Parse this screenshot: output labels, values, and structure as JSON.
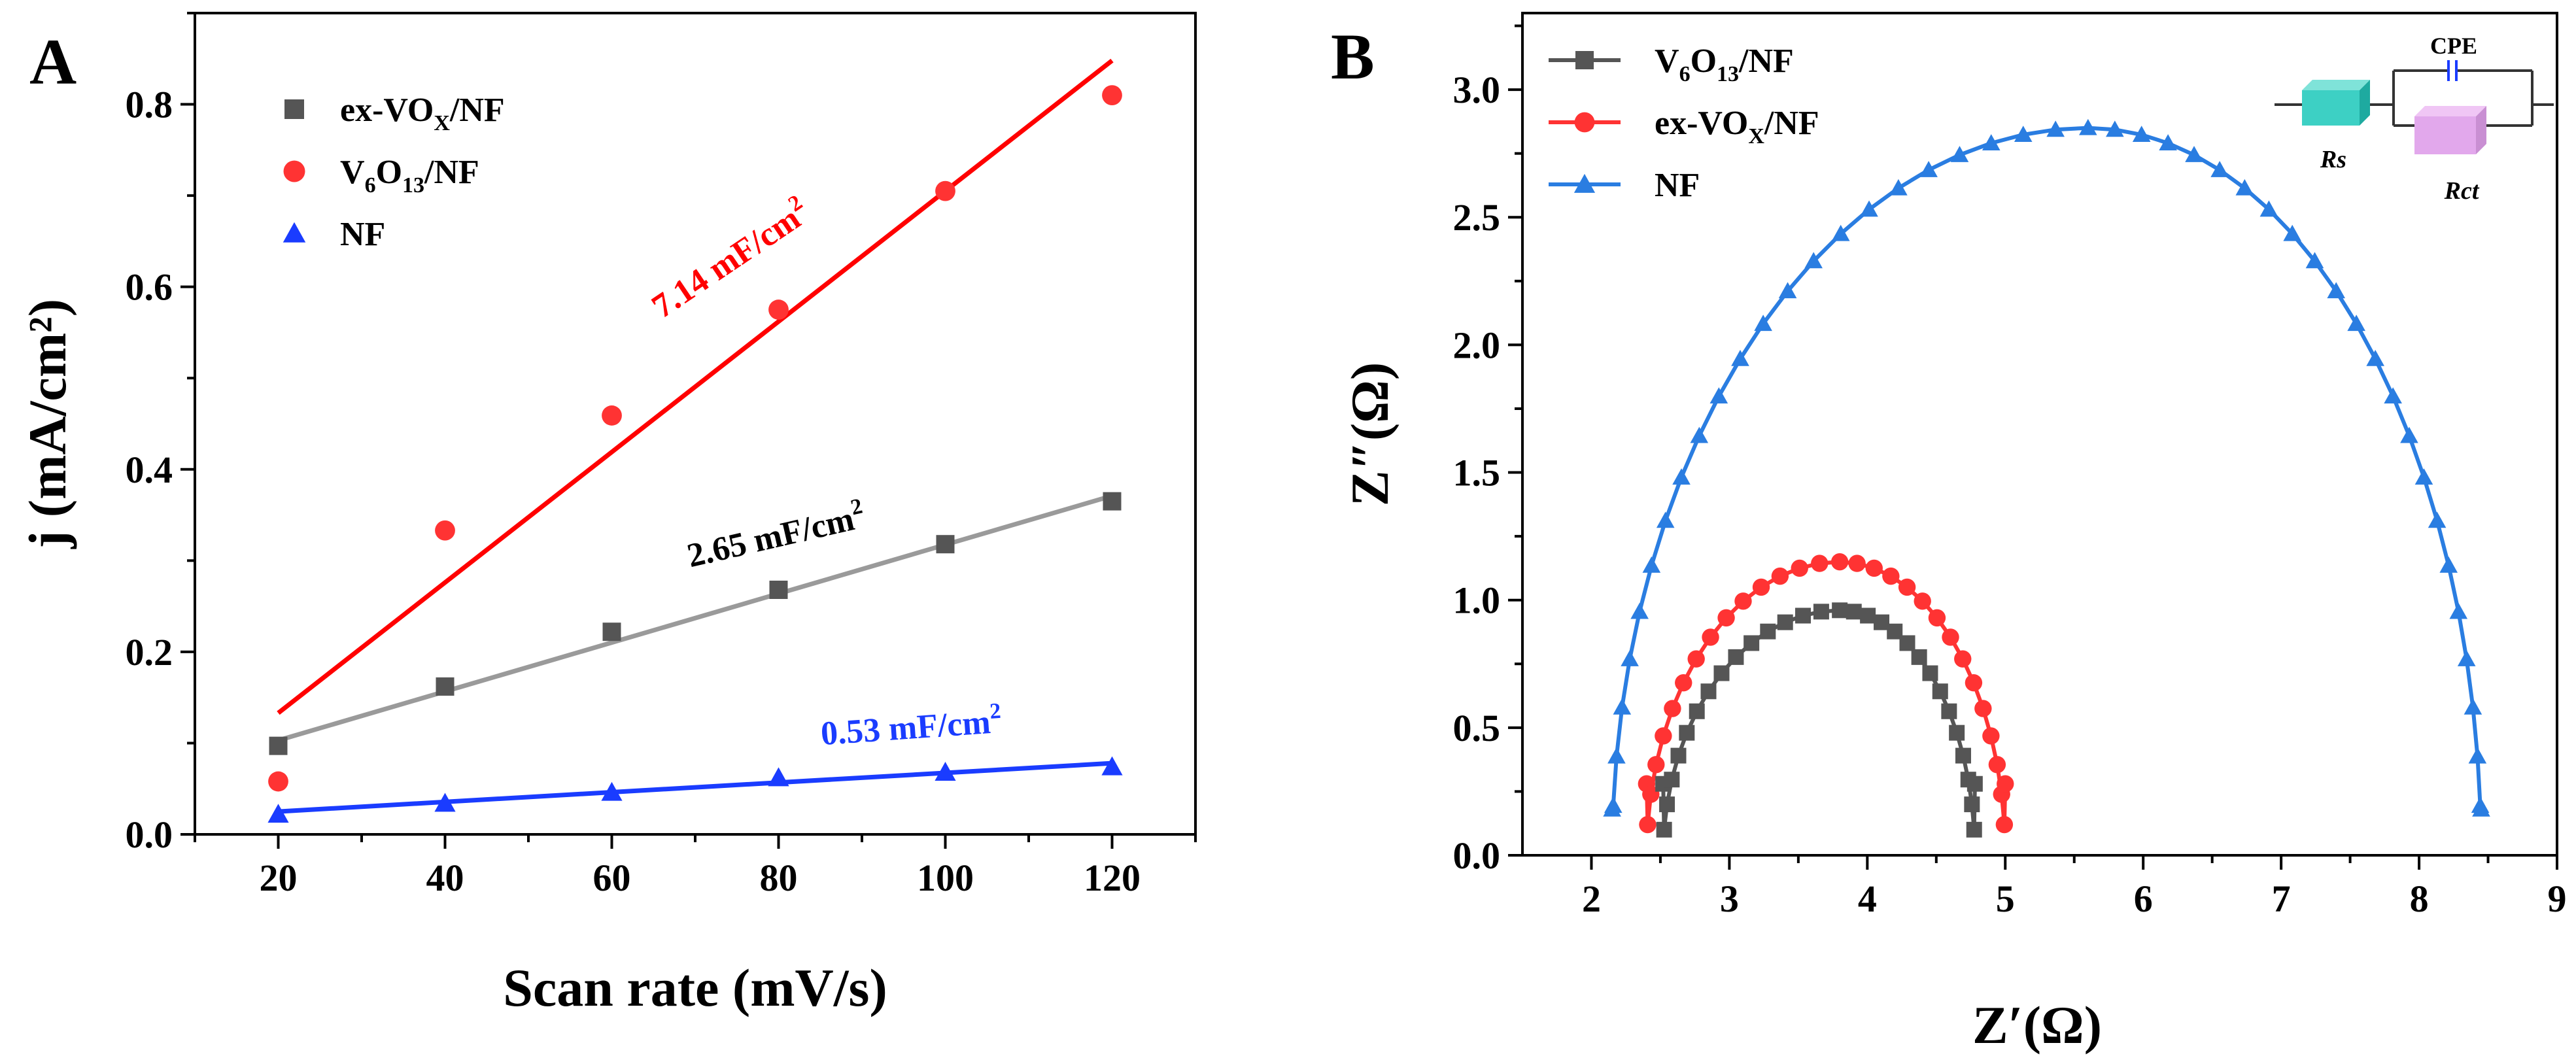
{
  "figure": {
    "panels": [
      "A",
      "B"
    ]
  },
  "chart_data": [
    {
      "panel": "A",
      "type": "scatter",
      "xlabel": "Scan rate (mV/s)",
      "ylabel": "j (mA/cm²)",
      "xlim": [
        10,
        130
      ],
      "ylim": [
        0,
        0.9
      ],
      "xticks": [
        "20",
        "40",
        "60",
        "80",
        "100",
        "120"
      ],
      "yticks": [
        "0.0",
        "0.2",
        "0.4",
        "0.6",
        "0.8"
      ],
      "legend": "top-left",
      "series": [
        {
          "name": "ex-VOX/NF",
          "marker": "square",
          "color": "#555555",
          "line_color": "#9a9a9a",
          "x": [
            20,
            40,
            60,
            80,
            100,
            120
          ],
          "y": [
            0.097,
            0.162,
            0.222,
            0.268,
            0.318,
            0.365
          ],
          "fit": [
            [
              20,
              0.103
            ],
            [
              120,
              0.371
            ]
          ]
        },
        {
          "name": "V6O13/NF",
          "marker": "circle",
          "color": "#ff3333",
          "line_color": "#ff0000",
          "x": [
            20,
            40,
            60,
            80,
            100,
            120
          ],
          "y": [
            0.058,
            0.333,
            0.459,
            0.575,
            0.705,
            0.81
          ],
          "fit": [
            [
              20,
              0.133
            ],
            [
              120,
              0.848
            ]
          ]
        },
        {
          "name": "NF",
          "marker": "triangle",
          "color": "#1a3cff",
          "line_color": "#1a3cff",
          "x": [
            20,
            40,
            60,
            80,
            100,
            120
          ],
          "y": [
            0.022,
            0.034,
            0.046,
            0.062,
            0.068,
            0.074
          ],
          "fit": [
            [
              20,
              0.025
            ],
            [
              120,
              0.078
            ]
          ]
        }
      ],
      "annotations": [
        {
          "text": "7.14 mF/cm",
          "sup": "2",
          "color": "#ff0000",
          "x": 75,
          "y": 0.62,
          "rotate": -34
        },
        {
          "text": "2.65 mF/cm",
          "sup": "2",
          "color": "#000000",
          "x": 80,
          "y": 0.315,
          "rotate": -13
        },
        {
          "text": "0.53 mF/cm",
          "sup": "2",
          "color": "#1a3cff",
          "x": 96,
          "y": 0.105,
          "rotate": -4
        }
      ]
    },
    {
      "panel": "B",
      "type": "line",
      "xlabel": "Z′(Ω)",
      "ylabel": "Z″(Ω)",
      "xlim": [
        1.5,
        9
      ],
      "ylim": [
        0,
        3.3
      ],
      "xticks": [
        "2",
        "3",
        "4",
        "5",
        "6",
        "7",
        "8",
        "9"
      ],
      "yticks": [
        "0.0",
        "0.5",
        "1.0",
        "1.5",
        "2.0",
        "2.5",
        "3.0"
      ],
      "legend": "top-left",
      "series": [
        {
          "name": "V6O13/NF",
          "marker": "square",
          "color": "#555555",
          "shape": {
            "x0": 2.52,
            "x1": 4.78,
            "peak": 0.96,
            "peak_x": 3.8,
            "n": 30
          }
        },
        {
          "name": "ex-VOX/NF",
          "marker": "circle",
          "color": "#ff3333",
          "shape": {
            "x0": 2.4,
            "x1": 5.0,
            "peak": 1.15,
            "peak_x": 3.8,
            "n": 30
          }
        },
        {
          "name": "NF",
          "marker": "triangle",
          "color": "#2a7de1",
          "shape": {
            "x0": 2.15,
            "x1": 8.45,
            "peak": 2.85,
            "peak_x": 5.6,
            "n": 46
          }
        }
      ],
      "inset_labels": {
        "cpe": "CPE",
        "rs": "Rs",
        "rct": "Rct"
      }
    }
  ]
}
